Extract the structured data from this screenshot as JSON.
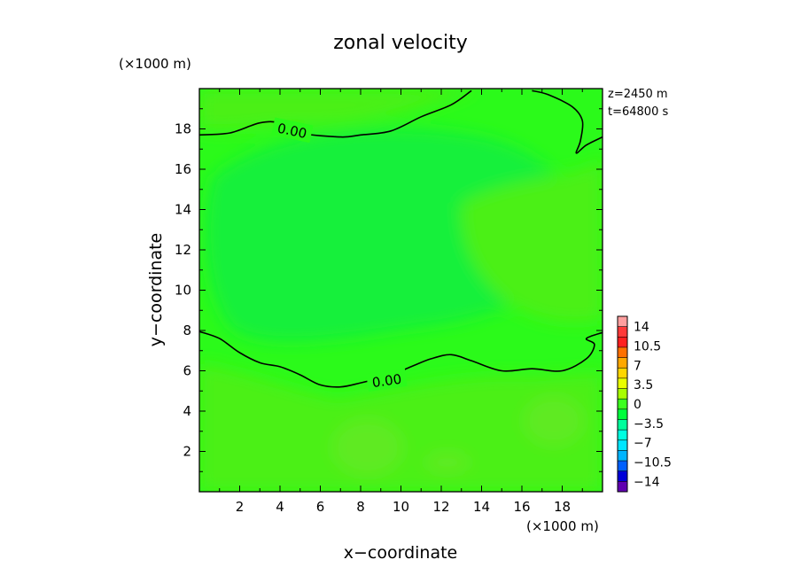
{
  "chart_data": {
    "type": "heatmap",
    "title": "zonal velocity",
    "xlabel": "x−coordinate",
    "ylabel": "y−coordinate",
    "x_unit": "(×1000 m)",
    "y_unit": "(×1000 m)",
    "x_range": [
      0,
      20
    ],
    "y_range": [
      0,
      20
    ],
    "x_ticks": [
      "2",
      "4",
      "6",
      "8",
      "10",
      "12",
      "14",
      "16",
      "18"
    ],
    "y_ticks": [
      "2",
      "4",
      "6",
      "8",
      "10",
      "12",
      "14",
      "16",
      "18"
    ],
    "annotation": {
      "z": "z=2450 m",
      "t": "t=64800 s"
    },
    "contour_label": "0.00",
    "contour_levels": [
      0.0
    ],
    "zero_contours": [
      {
        "name": "upper",
        "points": [
          [
            0,
            17.7
          ],
          [
            1.5,
            17.8
          ],
          [
            3,
            18.3
          ],
          [
            4,
            18.3
          ],
          [
            5,
            17.8
          ],
          [
            7,
            17.6
          ],
          [
            8,
            17.7
          ],
          [
            9.5,
            17.9
          ],
          [
            11,
            18.6
          ],
          [
            12.5,
            19.2
          ],
          [
            13.5,
            19.9
          ]
        ]
      },
      {
        "name": "upper-right",
        "points": [
          [
            16.5,
            19.9
          ],
          [
            17.3,
            19.7
          ],
          [
            18.5,
            19.1
          ],
          [
            19,
            18.4
          ],
          [
            18.9,
            17.4
          ],
          [
            18.7,
            16.8
          ],
          [
            19.2,
            17.2
          ],
          [
            20,
            17.6
          ]
        ]
      },
      {
        "name": "lower",
        "points": [
          [
            0,
            7.95
          ],
          [
            1,
            7.6
          ],
          [
            2,
            6.9
          ],
          [
            3,
            6.4
          ],
          [
            4,
            6.2
          ],
          [
            5,
            5.8
          ],
          [
            6,
            5.3
          ],
          [
            7,
            5.2
          ],
          [
            8,
            5.4
          ],
          [
            9.5,
            5.8
          ],
          [
            10.5,
            6.2
          ],
          [
            11.5,
            6.6
          ],
          [
            12.5,
            6.8
          ],
          [
            13.5,
            6.5
          ],
          [
            15,
            6.0
          ],
          [
            16.5,
            6.1
          ],
          [
            18,
            6.0
          ],
          [
            19.2,
            6.6
          ],
          [
            19.6,
            7.3
          ],
          [
            19.2,
            7.6
          ],
          [
            20,
            7.9
          ]
        ]
      }
    ],
    "colorbar": {
      "labels": [
        "14",
        "10.5",
        "7",
        "3.5",
        "0",
        "−3.5",
        "−7",
        "−10.5",
        "−14"
      ],
      "min": -14,
      "max": 14,
      "step": 1.75,
      "colors": [
        "#ff9f9f",
        "#ff3a3a",
        "#ff2020",
        "#ff7000",
        "#ffa800",
        "#ffd600",
        "#eaff00",
        "#a8ff00",
        "#3cff1e",
        "#00ff3c",
        "#00ff9c",
        "#00ffe1",
        "#00e6ff",
        "#00b4ff",
        "#0060ff",
        "#0000d8",
        "#6000b0"
      ]
    },
    "field_colors": {
      "dominant": "#2bfa1a",
      "slow_interior": "#15f03a",
      "positive_weak": "#4cf019",
      "positive_patch": "#5eea22"
    }
  }
}
